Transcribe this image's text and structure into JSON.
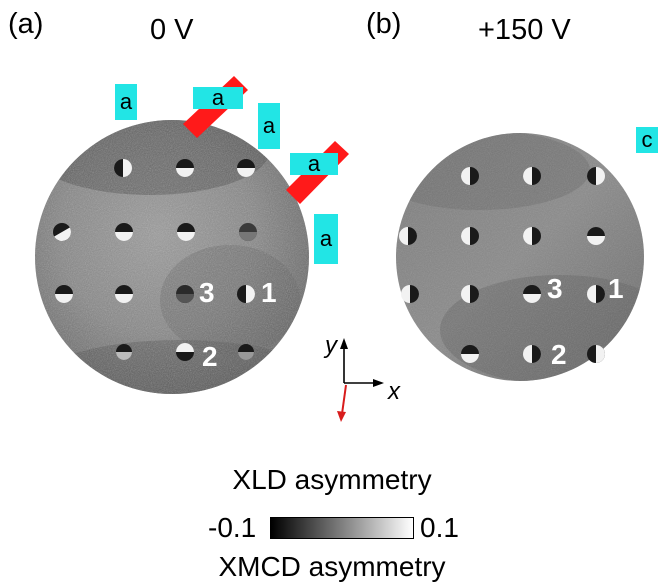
{
  "panels": [
    {
      "label": "(a)",
      "voltage": "0 V"
    },
    {
      "label": "(b)",
      "voltage": "+150 V"
    }
  ],
  "highlight_color": "#22e5e5",
  "domain_arrow_color": "#ff0000",
  "panel_a": {
    "markers": [
      "a",
      "a",
      "a",
      "a",
      "a"
    ],
    "numbers": [
      "3",
      "1",
      "2"
    ]
  },
  "panel_b": {
    "markers": [
      "c"
    ],
    "numbers": [
      "3",
      "1",
      "2"
    ]
  },
  "axes": {
    "x": "x",
    "y": "y"
  },
  "colorbar": {
    "title_top": "XLD asymmetry",
    "min": "-0.1",
    "max": "0.1",
    "title_bottom": "XMCD asymmetry"
  }
}
